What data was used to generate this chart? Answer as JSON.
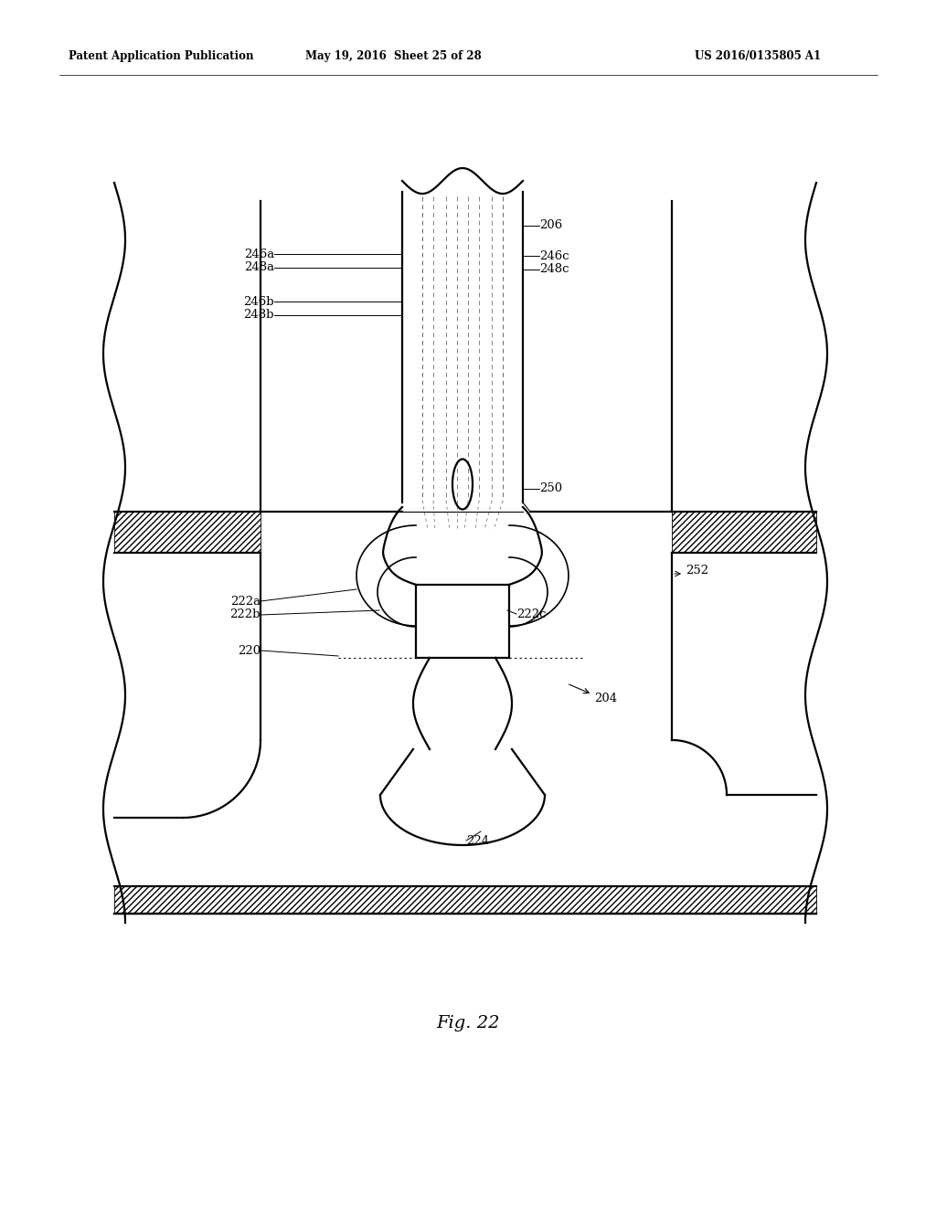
{
  "header_left": "Patent Application Publication",
  "header_mid": "May 19, 2016  Sheet 25 of 28",
  "header_right": "US 2016/0135805 A1",
  "fig_label": "Fig. 22",
  "bg": "#ffffff",
  "lc": "#000000"
}
